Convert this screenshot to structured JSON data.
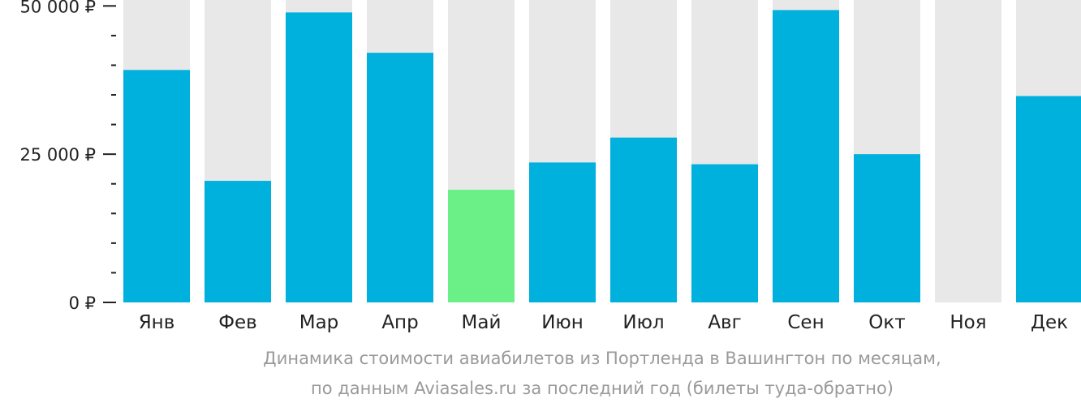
{
  "chart_data": {
    "type": "bar",
    "categories": [
      "Янв",
      "Фев",
      "Мар",
      "Апр",
      "Май",
      "Июн",
      "Июл",
      "Авг",
      "Сен",
      "Окт",
      "Ноя",
      "Дек"
    ],
    "values": [
      39200,
      20500,
      48900,
      42100,
      19000,
      23600,
      27800,
      23300,
      49300,
      25000,
      null,
      34800
    ],
    "highlight_index": 4,
    "ylim": [
      0,
      51000
    ],
    "yticks": [
      0,
      25000,
      50000
    ],
    "ytick_labels": [
      "0 ₽",
      "25 000 ₽",
      "50 000 ₽"
    ],
    "minor_tick_step": 5000,
    "colors": {
      "bar": "#00b0dd",
      "highlight": "#6bf088",
      "background_bar": "#e8e8e8",
      "axis": "#222222"
    },
    "caption_line1": "Динамика стоимости авиабилетов из Портленда в Вашингтон по месяцам,",
    "caption_line2": "по данным Aviasales.ru за последний год (билеты туда-обратно)"
  }
}
